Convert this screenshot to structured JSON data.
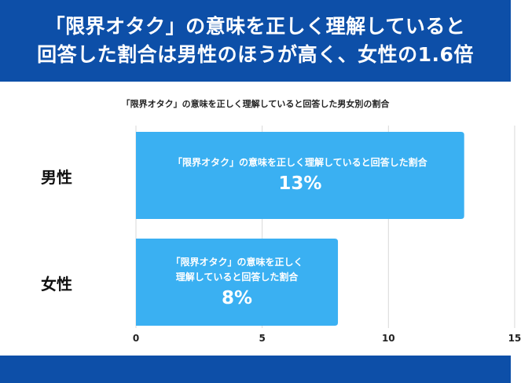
{
  "header": {
    "line1": "「限界オタク」の意味を正しく理解していると",
    "line2": "回答した割合は男性のほうが高く、女性の1.6倍"
  },
  "chart_data": {
    "type": "bar",
    "orientation": "horizontal",
    "title": "「限界オタク」の意味を正しく理解していると回答した男女別の割合",
    "categories": [
      "男性",
      "女性"
    ],
    "values": [
      13,
      8
    ],
    "value_labels": [
      "13%",
      "8%"
    ],
    "bar_descriptions": [
      "「限界オタク」の意味を正しく理解していると回答した割合",
      "「限界オタク」の意味を正しく\n理解していると回答した割合"
    ],
    "xlim": [
      0,
      15
    ],
    "xticks": [
      0,
      5,
      10,
      15
    ],
    "xtick_labels": [
      "0",
      "5",
      "10",
      "15"
    ],
    "grid": true,
    "colors": {
      "bar": "#3ab0f2",
      "grid": "#d9d9d9",
      "header": "#0d4fa8"
    }
  }
}
